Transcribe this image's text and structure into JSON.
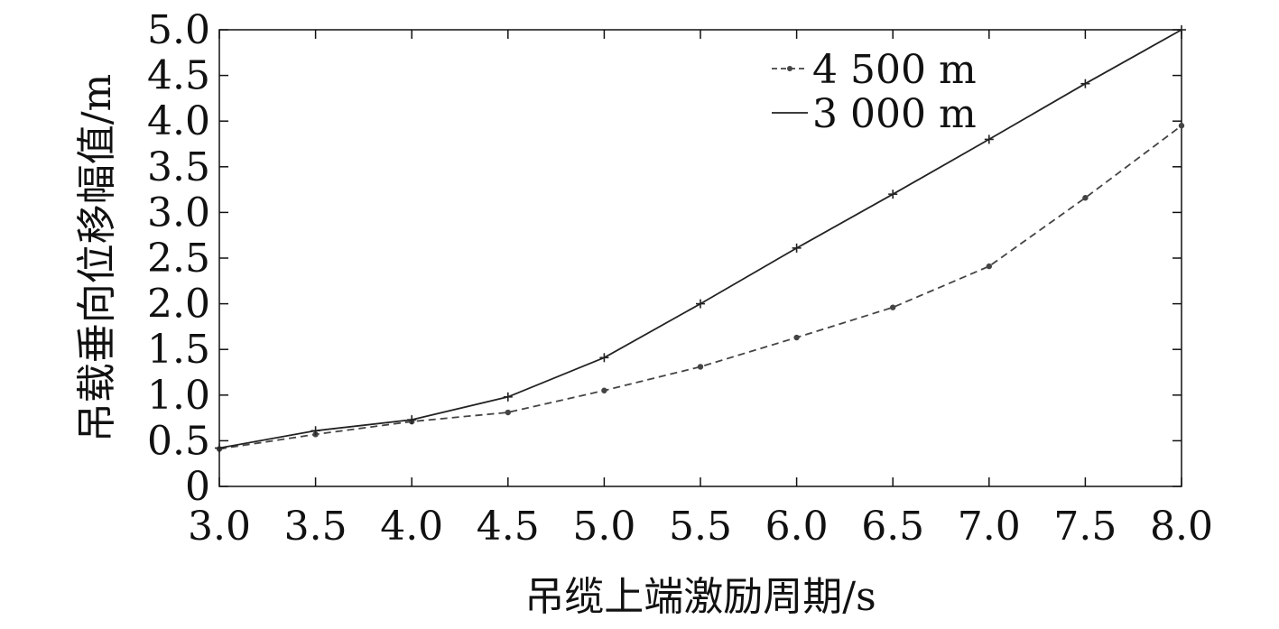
{
  "chart_data": {
    "type": "line",
    "xlabel": "吊缆上端激励周期/s",
    "ylabel": "吊载垂向位移幅值/m",
    "xlim": [
      3.0,
      8.0
    ],
    "ylim": [
      0,
      5.0
    ],
    "x": [
      3.0,
      3.5,
      4.0,
      4.5,
      5.0,
      5.5,
      6.0,
      6.5,
      7.0,
      7.5,
      8.0
    ],
    "x_tick_labels": [
      "3.0",
      "3.5",
      "4.0",
      "4.5",
      "5.0",
      "5.5",
      "6.0",
      "6.5",
      "7.0",
      "7.5",
      "8.0"
    ],
    "y_ticks": [
      0,
      0.5,
      1.0,
      1.5,
      2.0,
      2.5,
      3.0,
      3.5,
      4.0,
      4.5,
      5.0
    ],
    "y_tick_labels": [
      "0",
      "0.5",
      "1.0",
      "1.5",
      "2.0",
      "2.5",
      "3.0",
      "3.5",
      "4.0",
      "4.5",
      "5.0"
    ],
    "grid": false,
    "legend_position": "top-right",
    "series": [
      {
        "name": "4 500 m",
        "style": "dashed",
        "marker": "dot",
        "color": "#444444",
        "values": [
          0.41,
          0.57,
          0.71,
          0.81,
          1.05,
          1.31,
          1.63,
          1.96,
          2.41,
          3.16,
          3.95
        ]
      },
      {
        "name": "3 000 m",
        "style": "solid",
        "marker": "plus",
        "color": "#222222",
        "values": [
          0.42,
          0.61,
          0.73,
          0.98,
          1.41,
          2.0,
          2.61,
          3.2,
          3.8,
          4.41,
          5.0
        ]
      }
    ]
  }
}
